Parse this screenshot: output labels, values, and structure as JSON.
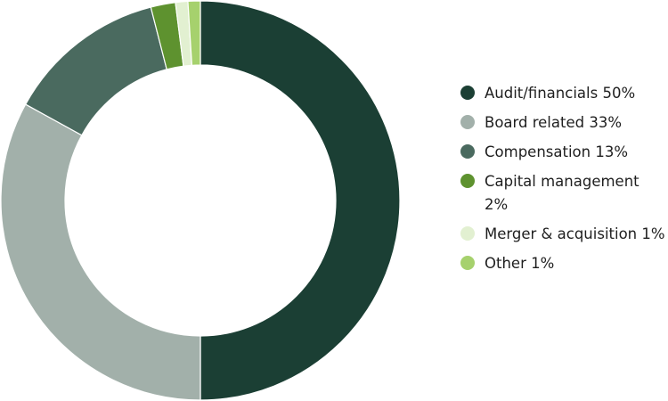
{
  "chart_data": {
    "type": "pie",
    "title": "",
    "legend_position": "right",
    "slices": [
      {
        "label": "Audit/financials",
        "value": 50,
        "value_label": "50%",
        "color": "#1b3f34"
      },
      {
        "label": "Board related",
        "value": 33,
        "value_label": "33%",
        "color": "#a2b0aa"
      },
      {
        "label": "Compensation",
        "value": 13,
        "value_label": "13%",
        "color": "#4a6a5f"
      },
      {
        "label": "Capital management",
        "value": 2,
        "value_label": "2%",
        "color": "#5e922f"
      },
      {
        "label": "Merger & acquisition",
        "value": 1,
        "value_label": "1%",
        "color": "#e2f0d1"
      },
      {
        "label": "Other",
        "value": 1,
        "value_label": "1%",
        "color": "#a6d16d"
      }
    ]
  }
}
